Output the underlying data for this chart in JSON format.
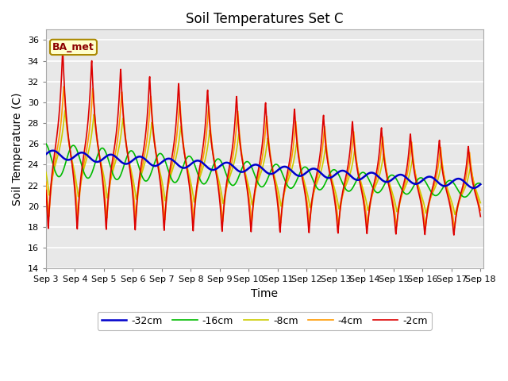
{
  "title": "Soil Temperatures Set C",
  "xlabel": "Time",
  "ylabel": "Soil Temperature (C)",
  "ylim": [
    14,
    37
  ],
  "yticks": [
    14,
    16,
    18,
    20,
    22,
    24,
    26,
    28,
    30,
    32,
    34,
    36
  ],
  "annotation": "BA_met",
  "series": {
    "-2cm": {
      "color": "#dd0000",
      "lw": 1.2
    },
    "-4cm": {
      "color": "#ff9900",
      "lw": 1.2
    },
    "-8cm": {
      "color": "#cccc00",
      "lw": 1.2
    },
    "-16cm": {
      "color": "#00bb00",
      "lw": 1.2
    },
    "-32cm": {
      "color": "#0000cc",
      "lw": 1.8
    }
  },
  "x_tick_days": [
    3,
    4,
    5,
    6,
    7,
    8,
    9,
    10,
    11,
    12,
    13,
    14,
    15,
    16,
    17,
    18
  ],
  "plot_bg": "#e8e8e8",
  "fig_bg": "#ffffff",
  "grid_color": "#ffffff",
  "grid_lw": 1.2
}
